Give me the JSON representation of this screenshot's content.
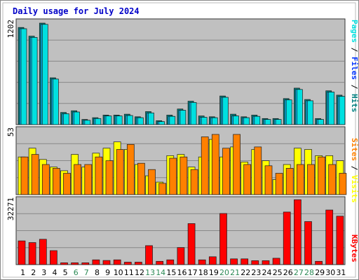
{
  "chart_data": {
    "type": "bar",
    "title": "Daily usage for July 2024",
    "categories": [
      "1",
      "2",
      "3",
      "4",
      "5",
      "6",
      "7",
      "8",
      "9",
      "10",
      "11",
      "12",
      "13",
      "14",
      "15",
      "16",
      "17",
      "18",
      "19",
      "20",
      "21",
      "22",
      "23",
      "24",
      "25",
      "26",
      "27",
      "28",
      "29",
      "30",
      "31"
    ],
    "weekend_days": [
      "6",
      "7",
      "13",
      "14",
      "20",
      "21",
      "27",
      "28"
    ],
    "grid": true,
    "panels": [
      {
        "name": "hits-panel",
        "max_label": "1202",
        "ylim": [
          0,
          1202
        ],
        "axis_label_parts": [
          {
            "text": "Pages",
            "color": "#00e0e0"
          },
          {
            "text": " / ",
            "color": "#000000"
          },
          {
            "text": "Files",
            "color": "#0033ff"
          },
          {
            "text": " / ",
            "color": "#000000"
          },
          {
            "text": "Hits",
            "color": "#008080"
          }
        ],
        "series": [
          {
            "name": "Hits",
            "color": "#008080",
            "values": [
              1120,
              1020,
              1170,
              540,
              140,
              160,
              60,
              80,
              110,
              110,
              120,
              90,
              150,
              45,
              110,
              180,
              270,
              100,
              90,
              330,
              120,
              90,
              110,
              70,
              70,
              300,
              420,
              290,
              70,
              390,
              340
            ]
          },
          {
            "name": "Files",
            "color": "#00bfff",
            "values": [
              1105,
              1005,
              1155,
              525,
              125,
              145,
              50,
              70,
              100,
              100,
              105,
              80,
              135,
              35,
              95,
              165,
              255,
              85,
              80,
              315,
              100,
              80,
              95,
              60,
              60,
              285,
              405,
              275,
              60,
              375,
              325
            ]
          },
          {
            "name": "Pages",
            "color": "#00e0e0",
            "values": [
              1105,
              1005,
              1155,
              525,
              125,
              145,
              50,
              70,
              100,
              100,
              105,
              80,
              135,
              35,
              95,
              165,
              255,
              85,
              80,
              315,
              100,
              80,
              95,
              60,
              60,
              285,
              405,
              275,
              60,
              375,
              325
            ]
          }
        ]
      },
      {
        "name": "visits-panel",
        "max_label": "53",
        "ylim": [
          0,
          53
        ],
        "axis_label_parts": [
          {
            "text": "Sites",
            "color": "#ff8000"
          },
          {
            "text": " / ",
            "color": "#000000"
          },
          {
            "text": "Visits",
            "color": "#ffff00"
          }
        ],
        "series": [
          {
            "name": "Visits",
            "color": "#ffff00",
            "values": [
              30,
              37,
              28,
              22,
              19,
              32,
              22,
              33,
              37,
              42,
              36,
              24,
              15,
              10,
              31,
              32,
              22,
              30,
              44,
              30,
              38,
              26,
              36,
              27,
              12,
              24,
              37,
              36,
              31,
              31,
              27
            ]
          },
          {
            "name": "Sites",
            "color": "#ff8000",
            "values": [
              30,
              32,
              24,
              21,
              17,
              24,
              24,
              30,
              27,
              36,
              40,
              25,
              20,
              9,
              29,
              30,
              20,
              46,
              48,
              37,
              48,
              24,
              38,
              23,
              17,
              21,
              24,
              24,
              30,
              24,
              17
            ]
          }
        ]
      },
      {
        "name": "kbytes-panel",
        "max_label": "32271",
        "ylim": [
          0,
          32271
        ],
        "axis_label_parts": [
          {
            "text": "KBytes",
            "color": "#ff0000"
          }
        ],
        "series": [
          {
            "name": "KBytes",
            "color": "#ff0000",
            "values": [
              11500,
              10700,
              12300,
              6800,
              900,
              900,
              900,
              2300,
              2000,
              2300,
              1200,
              1200,
              9200,
              1600,
              2300,
              8300,
              19900,
              2300,
              3800,
              24800,
              2800,
              2800,
              1900,
              1900,
              3100,
              25500,
              31500,
              20900,
              1600,
              26500,
              23500
            ]
          }
        ]
      }
    ]
  }
}
